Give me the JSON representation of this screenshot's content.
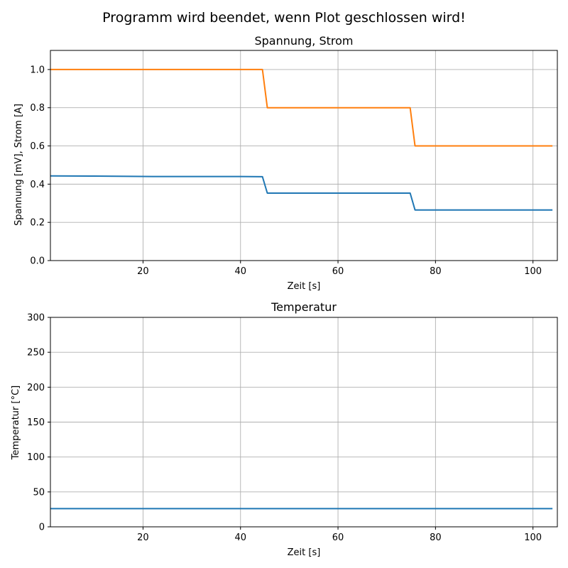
{
  "figure": {
    "title": "Programm wird beendet, wenn Plot geschlossen wird!"
  },
  "chart_data": [
    {
      "type": "line",
      "title": "Spannung, Strom",
      "xlabel": "Zeit [s]",
      "ylabel": "Spannung [mV], Strom [A]",
      "xlim": [
        1,
        105
      ],
      "ylim": [
        0,
        1.1
      ],
      "xticks": [
        20,
        40,
        60,
        80,
        100
      ],
      "xtick_labels": [
        "20",
        "40",
        "60",
        "80",
        "100"
      ],
      "yticks": [
        0,
        0.2,
        0.4,
        0.6,
        0.8,
        1.0
      ],
      "ytick_labels": [
        "0.0",
        "0.2",
        "0.4",
        "0.6",
        "0.8",
        "1.0"
      ],
      "grid": true,
      "series": [
        {
          "color": "#1f77b4",
          "x": [
            1,
            10,
            22,
            30,
            40,
            44.5,
            45.5,
            60,
            70,
            74.8,
            75.8,
            85,
            95,
            104
          ],
          "y": [
            0.443,
            0.442,
            0.44,
            0.44,
            0.44,
            0.439,
            0.353,
            0.353,
            0.353,
            0.353,
            0.265,
            0.265,
            0.265,
            0.265
          ]
        },
        {
          "color": "#ff7f0e",
          "x": [
            1,
            20,
            44.5,
            45.5,
            60,
            74.8,
            75.8,
            90,
            104
          ],
          "y": [
            1.0,
            1.0,
            1.0,
            0.8,
            0.8,
            0.8,
            0.6,
            0.6,
            0.6
          ]
        }
      ]
    },
    {
      "type": "line",
      "title": "Temperatur",
      "xlabel": "Zeit [s]",
      "ylabel": "Temperatur [°C]",
      "xlim": [
        1,
        105
      ],
      "ylim": [
        0,
        300
      ],
      "xticks": [
        20,
        40,
        60,
        80,
        100
      ],
      "xtick_labels": [
        "20",
        "40",
        "60",
        "80",
        "100"
      ],
      "yticks": [
        0,
        50,
        100,
        150,
        200,
        250,
        300
      ],
      "ytick_labels": [
        "0",
        "50",
        "100",
        "150",
        "200",
        "250",
        "300"
      ],
      "grid": true,
      "series": [
        {
          "color": "#1f77b4",
          "x": [
            1,
            104
          ],
          "y": [
            26,
            26
          ]
        }
      ]
    }
  ]
}
